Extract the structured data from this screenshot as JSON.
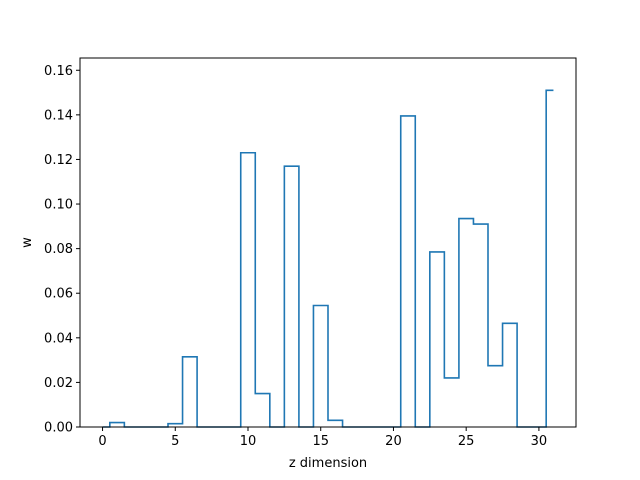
{
  "chart_data": {
    "type": "step",
    "xlabel": "z dimension",
    "ylabel": "w",
    "xlim": [
      -1.55,
      32.55
    ],
    "ylim": [
      0,
      0.1655
    ],
    "x_ticks": [
      0,
      5,
      10,
      15,
      20,
      25,
      30
    ],
    "y_ticks": [
      0.0,
      0.02,
      0.04,
      0.06,
      0.08,
      0.1,
      0.12,
      0.14,
      0.16
    ],
    "x_tick_labels": [
      "0",
      "5",
      "10",
      "15",
      "20",
      "25",
      "30"
    ],
    "y_tick_labels": [
      "0.00",
      "0.02",
      "0.04",
      "0.06",
      "0.08",
      "0.10",
      "0.12",
      "0.14",
      "0.16"
    ],
    "step_where": "mid",
    "series_color": "#1f77b4",
    "x": [
      0,
      1,
      2,
      3,
      4,
      5,
      6,
      7,
      8,
      9,
      10,
      11,
      12,
      13,
      14,
      15,
      16,
      17,
      18,
      19,
      20,
      21,
      22,
      23,
      24,
      25,
      26,
      27,
      28,
      29,
      30,
      31
    ],
    "values": [
      0.0,
      0.002,
      0.0,
      0.0,
      0.0,
      0.0015,
      0.0315,
      0.0,
      0.0,
      0.0,
      0.123,
      0.015,
      0.0,
      0.117,
      0.0,
      0.0545,
      0.003,
      0.0,
      0.0,
      0.0,
      0.0,
      0.1395,
      0.0,
      0.0785,
      0.022,
      0.0935,
      0.091,
      0.0275,
      0.0465,
      0.0,
      0.0,
      0.151
    ]
  }
}
